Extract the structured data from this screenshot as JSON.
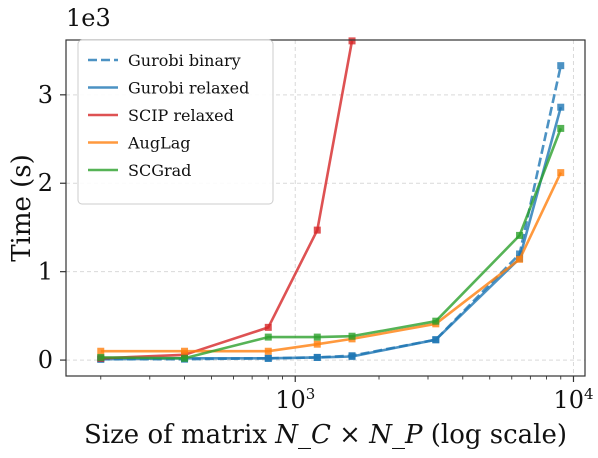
{
  "chart_data": {
    "type": "line",
    "xscale": "log",
    "xlim": [
      150,
      11000
    ],
    "ylim": [
      -0.18,
      3.62
    ],
    "xlabel_prefix": "Size of matrix ",
    "xlabel_math": "N_C × N_P",
    "xlabel_suffix": " (log scale)",
    "ylabel": "Time (s)",
    "y_multiplier": "1e3",
    "x_ticks": [
      {
        "value": 1000,
        "base": "10",
        "exp": "3"
      },
      {
        "value": 10000,
        "base": "10",
        "exp": "4"
      }
    ],
    "y_ticks": [
      {
        "value": 0,
        "label": "0"
      },
      {
        "value": 1,
        "label": "1"
      },
      {
        "value": 2,
        "label": "2"
      },
      {
        "value": 3,
        "label": "3"
      }
    ],
    "grid": true,
    "legend_position": "top-left",
    "series": [
      {
        "name": "Gurobi binary",
        "color": "#1f77b4",
        "dash": true,
        "x": [
          200,
          400,
          800,
          1200,
          1600,
          3200,
          6400,
          9000
        ],
        "y": [
          0.01,
          0.01,
          0.02,
          0.03,
          0.05,
          0.23,
          1.2,
          3.33
        ]
      },
      {
        "name": "Gurobi relaxed",
        "color": "#1f77b4",
        "dash": false,
        "x": [
          200,
          400,
          800,
          1200,
          1600,
          3200,
          6400,
          9000
        ],
        "y": [
          0.01,
          0.02,
          0.02,
          0.03,
          0.04,
          0.23,
          1.15,
          2.86
        ]
      },
      {
        "name": "SCIP relaxed",
        "color": "#d62728",
        "dash": false,
        "x": [
          200,
          400,
          800,
          1200,
          1600
        ],
        "y": [
          0.02,
          0.06,
          0.37,
          1.47,
          3.61
        ]
      },
      {
        "name": "AugLag",
        "color": "#ff7f0e",
        "dash": false,
        "x": [
          200,
          400,
          800,
          1200,
          1600,
          3200,
          6400,
          9000
        ],
        "y": [
          0.1,
          0.1,
          0.1,
          0.18,
          0.24,
          0.41,
          1.14,
          2.12
        ]
      },
      {
        "name": "SCGrad",
        "color": "#2ca02c",
        "dash": false,
        "x": [
          200,
          400,
          800,
          1200,
          1600,
          3200,
          6400,
          9000
        ],
        "y": [
          0.03,
          0.02,
          0.26,
          0.26,
          0.27,
          0.44,
          1.41,
          2.62
        ]
      }
    ]
  }
}
